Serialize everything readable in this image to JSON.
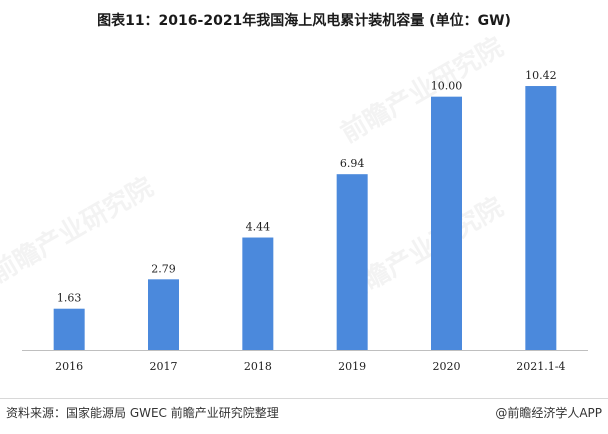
{
  "title": "图表11：2016-2021年我国海上风电累计装机容量 (单位：GW)",
  "footer": {
    "source": "资料来源：国家能源局 GWEC 前瞻产业研究院整理",
    "app_credit": "@前瞻经济学人APP"
  },
  "watermark": "前瞻产业研究院",
  "colors": {
    "bar": "#4B89DC",
    "axis": "#bfbfbf"
  },
  "chart_data": {
    "type": "bar",
    "title": "图表11：2016-2021年我国海上风电累计装机容量 (单位：GW)",
    "categories": [
      "2016",
      "2017",
      "2018",
      "2019",
      "2020",
      "2021.1-4"
    ],
    "values": [
      1.63,
      2.79,
      4.44,
      6.94,
      10.0,
      10.42
    ],
    "value_labels": [
      "1.63",
      "2.79",
      "4.44",
      "6.94",
      "10.00",
      "10.42"
    ],
    "xlabel": "",
    "ylabel": "",
    "ylim": [
      0,
      12
    ],
    "grid": false,
    "legend": "none"
  }
}
